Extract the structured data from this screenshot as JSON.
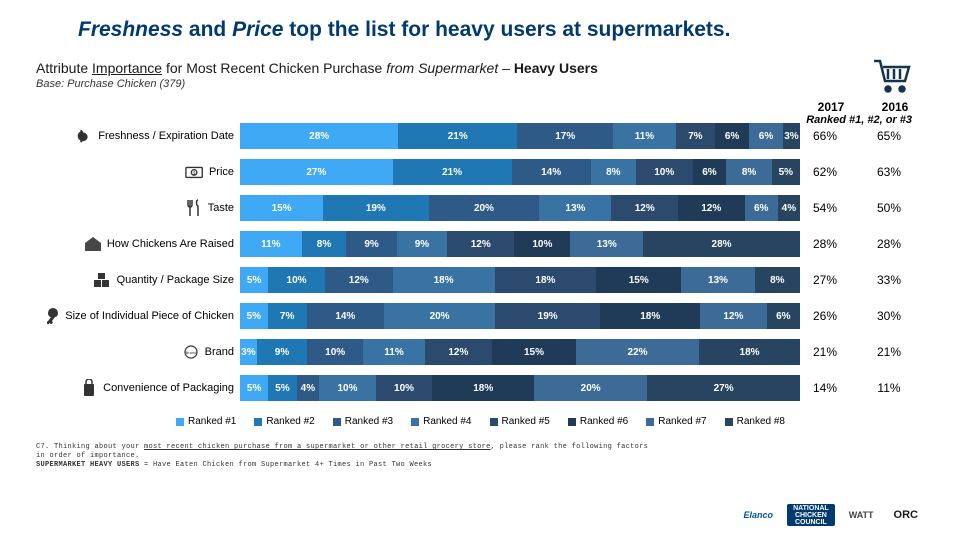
{
  "title": {
    "parts": [
      {
        "text": "Freshness",
        "em": true
      },
      {
        "text": " and ",
        "em": false
      },
      {
        "text": "Price",
        "em": true
      },
      {
        "text": " top the list for heavy users at supermarkets.",
        "em": false
      }
    ]
  },
  "subtitle_html": "Attribute <span class='u'>Importance</span> for Most Recent Chicken Purchase <span class='em'><i>from Supermarket</i></span> – <span class='b'>Heavy Users</span>",
  "base_text": "Base: Purchase Chicken (379)",
  "ranked_note": "Ranked #1, #2, or #3",
  "year_labels": [
    "2017",
    "2016"
  ],
  "colors": {
    "ranks": [
      "#3fa9f5",
      "#1f78b4",
      "#2e5a87",
      "#3873a4",
      "#2b4a6d",
      "#1f3b57",
      "#3c6b97",
      "#274560"
    ],
    "text_dark": "#1a1a1a"
  },
  "legend_labels": [
    "Ranked #1",
    "Ranked #2",
    "Ranked #3",
    "Ranked #4",
    "Ranked #5",
    "Ranked #6",
    "Ranked #7",
    "Ranked #8"
  ],
  "rows": [
    {
      "label": "Freshness / Expiration Date",
      "icon": "chicken",
      "segs": [
        28,
        21,
        17,
        11,
        7,
        6,
        6,
        3
      ],
      "y2017": "66%",
      "y2016": "65%"
    },
    {
      "label": "Price",
      "icon": "money",
      "segs": [
        27,
        21,
        14,
        8,
        10,
        6,
        8,
        5
      ],
      "y2017": "62%",
      "y2016": "63%"
    },
    {
      "label": "Taste",
      "icon": "utensils",
      "segs": [
        15,
        19,
        20,
        13,
        12,
        12,
        6,
        4
      ],
      "y2017": "54%",
      "y2016": "50%"
    },
    {
      "label": "How Chickens Are Raised",
      "icon": "farm",
      "segs": [
        11,
        8,
        9,
        9,
        12,
        10,
        13,
        28
      ],
      "y2017": "28%",
      "y2016": "28%"
    },
    {
      "label": "Quantity / Package Size",
      "icon": "boxes",
      "segs": [
        5,
        10,
        12,
        18,
        18,
        15,
        13,
        8
      ],
      "y2017": "27%",
      "y2016": "33%"
    },
    {
      "label": "Size of Individual Piece of Chicken",
      "icon": "drumstick",
      "segs": [
        5,
        7,
        14,
        20,
        19,
        18,
        12,
        6
      ],
      "y2017": "26%",
      "y2016": "30%"
    },
    {
      "label": "Brand",
      "icon": "tag",
      "segs": [
        3,
        9,
        10,
        11,
        12,
        15,
        22,
        18
      ],
      "y2017": "21%",
      "y2016": "21%"
    },
    {
      "label": "Convenience of Packaging",
      "icon": "package",
      "segs": [
        5,
        5,
        4,
        10,
        10,
        18,
        20,
        27
      ],
      "y2017": "14%",
      "y2016": "11%"
    }
  ],
  "footnote_lines": [
    "C7. Thinking about your <u>most recent chicken purchase from a supermarket or other retail grocery store</u>, please rank the following factors",
    "in order of importance.",
    "<b>SUPERMARKET HEAVY USERS</b> = Have Eaten Chicken from Supermarket 4+ Times in Past Two Weeks"
  ],
  "logos": [
    "Elanco",
    "NATIONAL CHICKEN COUNCIL",
    "WATT",
    "ORC"
  ]
}
